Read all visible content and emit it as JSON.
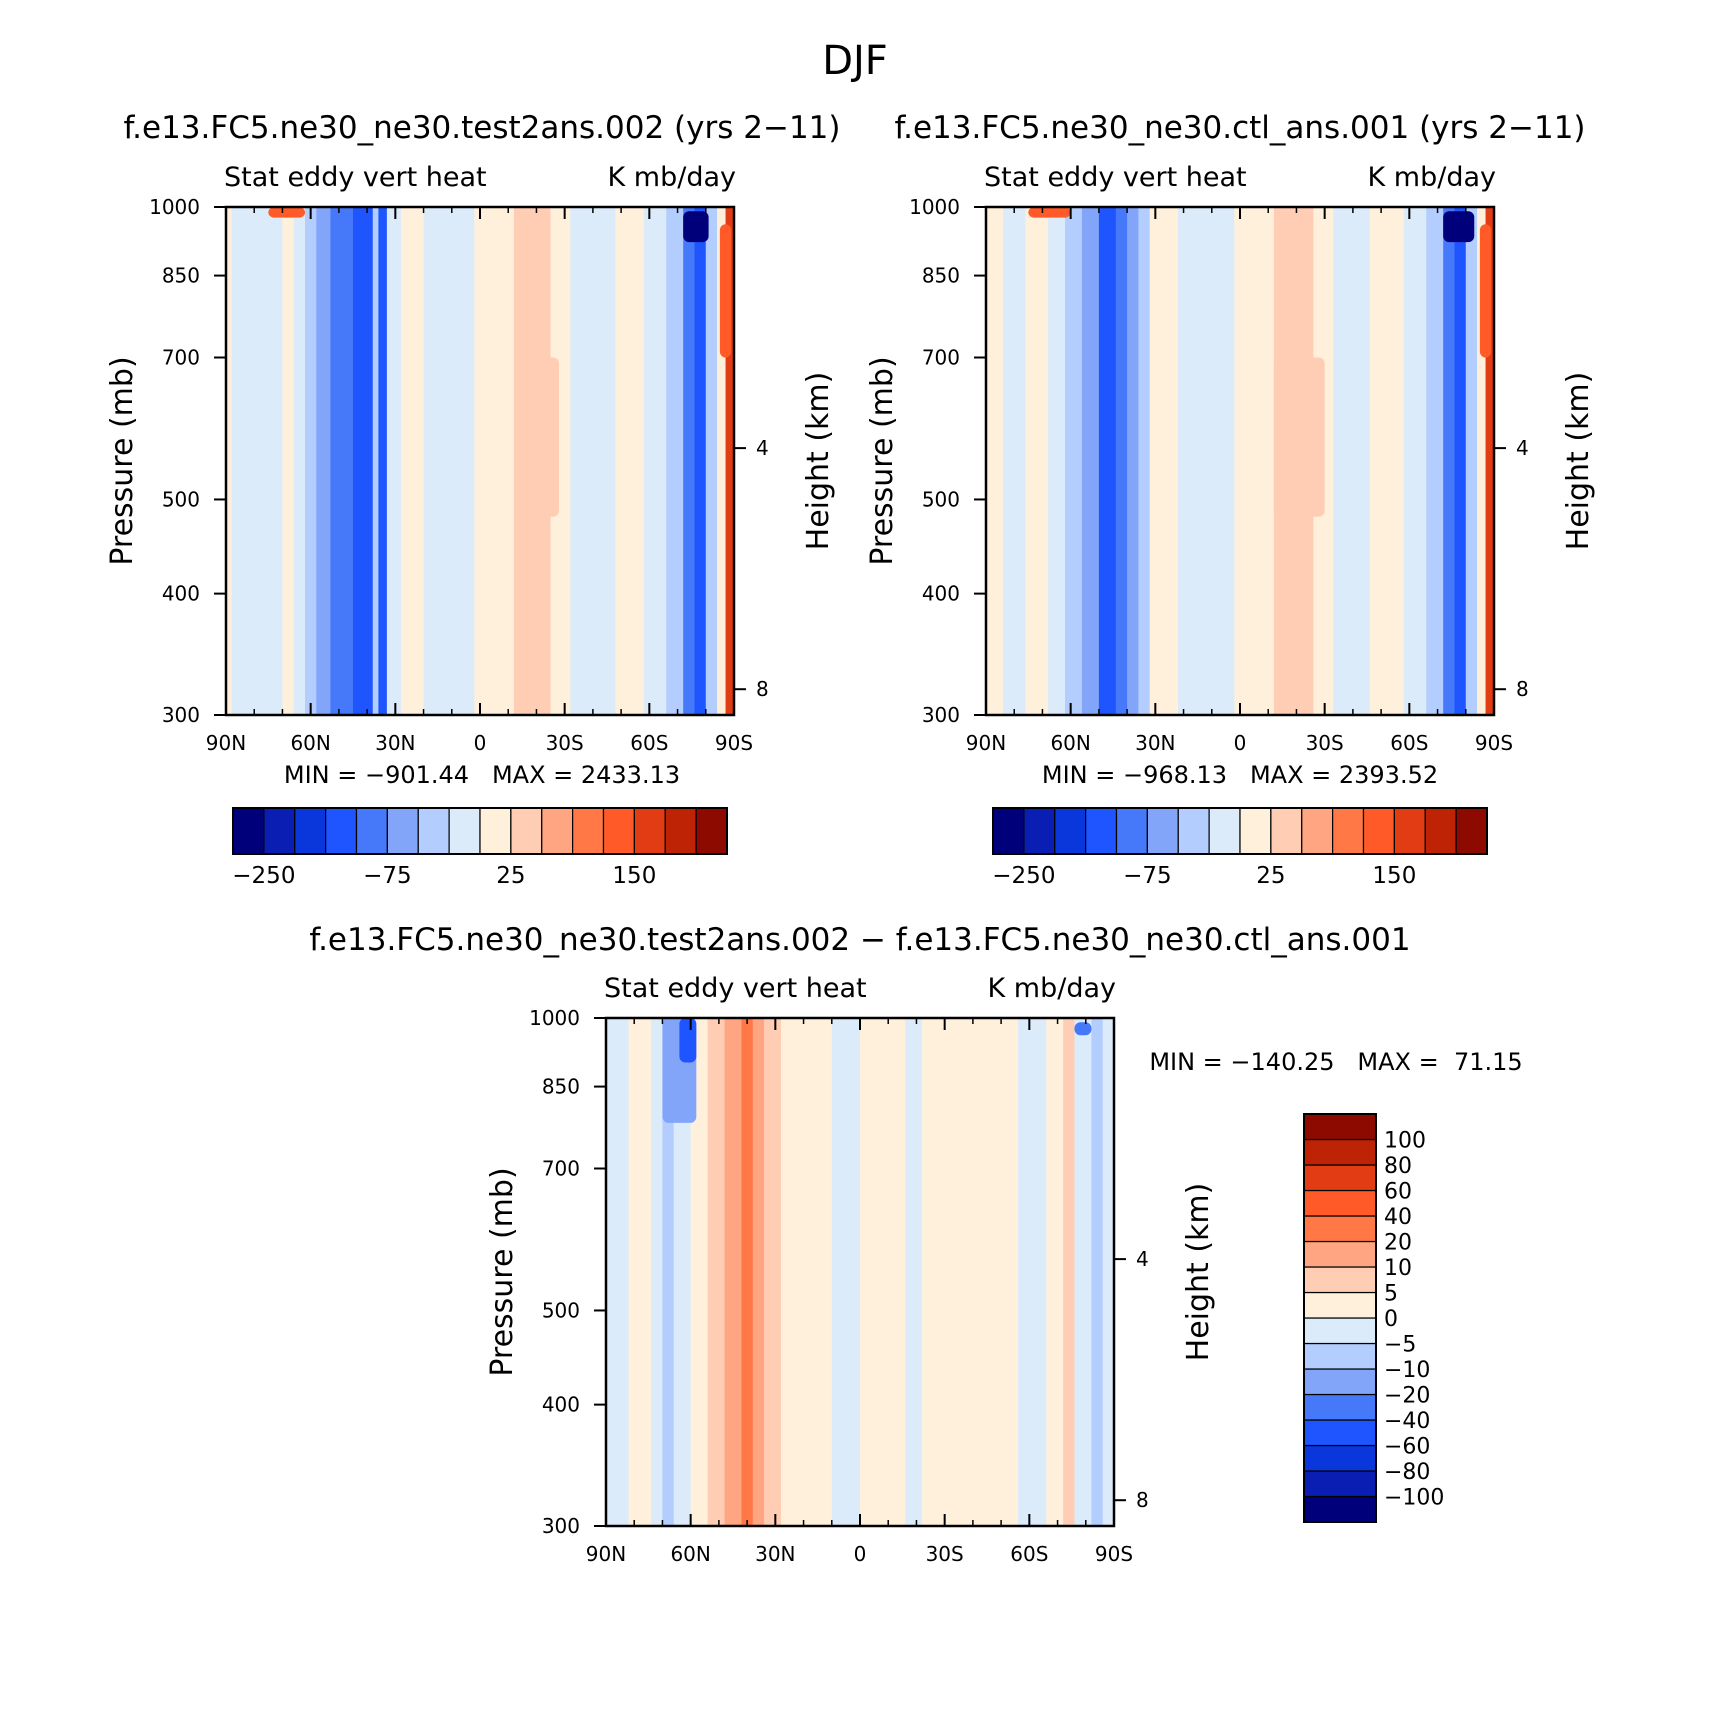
{
  "figure": {
    "title": "DJF",
    "palette": [
      "#00007a",
      "#0a1eb4",
      "#0a37dc",
      "#1e55ff",
      "#4678fa",
      "#82a5fa",
      "#b4cdff",
      "#dcebfa",
      "#fff0dc",
      "#ffcdb4",
      "#ffa582",
      "#ff7846",
      "#ff5a28",
      "#e13c14",
      "#be2305",
      "#8c0a00"
    ]
  },
  "chart_data": [
    {
      "type": "heatmap",
      "panel_title": "f.e13.FC5.ne30_ne30.test2ans.002 (yrs 2−11)",
      "variable": "Stat eddy vert heat",
      "units": "K mb/day",
      "ylabel": "Pressure (mb)",
      "y2label": "Height (km)",
      "x_ticks": [
        "90N",
        "60N",
        "30N",
        "0",
        "30S",
        "60S",
        "90S"
      ],
      "y_ticks": [
        300,
        400,
        500,
        700,
        850,
        1000
      ],
      "y2_ticks": [
        8,
        4
      ],
      "min_max": "MIN = −901.44   MAX = 2433.13",
      "colorbar_labels": [
        "−250",
        "−75",
        "25",
        "150"
      ],
      "ylim": [
        1000,
        300
      ],
      "xlim": [
        90,
        -90
      ],
      "bands": [
        {
          "lat": [
            90,
            88
          ],
          "level": 8
        },
        {
          "lat": [
            88,
            80
          ],
          "level": 7
        },
        {
          "lat": [
            80,
            70
          ],
          "level": 7
        },
        {
          "lat": [
            70,
            66
          ],
          "level": 8
        },
        {
          "lat": [
            66,
            62
          ],
          "level": 7
        },
        {
          "lat": [
            62,
            58
          ],
          "level": 6
        },
        {
          "lat": [
            58,
            53
          ],
          "level": 5
        },
        {
          "lat": [
            53,
            45
          ],
          "level": 4
        },
        {
          "lat": [
            45,
            38
          ],
          "level": 3
        },
        {
          "lat": [
            38,
            36
          ],
          "level": 6
        },
        {
          "lat": [
            36,
            33
          ],
          "level": 3
        },
        {
          "lat": [
            33,
            28
          ],
          "level": 7
        },
        {
          "lat": [
            28,
            20
          ],
          "level": 8
        },
        {
          "lat": [
            20,
            10
          ],
          "level": 7
        },
        {
          "lat": [
            10,
            2
          ],
          "level": 7
        },
        {
          "lat": [
            2,
            -12
          ],
          "level": 8
        },
        {
          "lat": [
            -12,
            -25
          ],
          "level": 9
        },
        {
          "lat": [
            -25,
            -32
          ],
          "level": 8
        },
        {
          "lat": [
            -32,
            -48
          ],
          "level": 7
        },
        {
          "lat": [
            -48,
            -58
          ],
          "level": 8
        },
        {
          "lat": [
            -58,
            -66
          ],
          "level": 7
        },
        {
          "lat": [
            -66,
            -72
          ],
          "level": 6
        },
        {
          "lat": [
            -72,
            -76
          ],
          "level": 4
        },
        {
          "lat": [
            -76,
            -80
          ],
          "level": 3
        },
        {
          "lat": [
            -80,
            -84
          ],
          "level": 6
        },
        {
          "lat": [
            -84,
            -87
          ],
          "level": 8
        },
        {
          "lat": [
            -87,
            -90
          ],
          "level": 13
        }
      ],
      "blobs": [
        {
          "lat": [
            -72,
            -81
          ],
          "p": [
            920,
            990
          ],
          "level": 0
        },
        {
          "lat": [
            62,
            75
          ],
          "p": [
            975,
            1000
          ],
          "level": 12
        },
        {
          "lat": [
            -15,
            -28
          ],
          "p": [
            480,
            700
          ],
          "level": 9
        },
        {
          "lat": [
            -85,
            -89
          ],
          "p": [
            700,
            960
          ],
          "level": 12
        }
      ]
    },
    {
      "type": "heatmap",
      "panel_title": "f.e13.FC5.ne30_ne30.ctl_ans.001 (yrs 2−11)",
      "variable": "Stat eddy vert heat",
      "units": "K mb/day",
      "ylabel": "Pressure (mb)",
      "y2label": "Height (km)",
      "x_ticks": [
        "90N",
        "60N",
        "30N",
        "0",
        "30S",
        "60S",
        "90S"
      ],
      "y_ticks": [
        300,
        400,
        500,
        700,
        850,
        1000
      ],
      "y2_ticks": [
        8,
        4
      ],
      "min_max": "MIN = −968.13   MAX = 2393.52",
      "colorbar_labels": [
        "−250",
        "−75",
        "25",
        "150"
      ],
      "ylim": [
        1000,
        300
      ],
      "xlim": [
        90,
        -90
      ],
      "bands": [
        {
          "lat": [
            90,
            84
          ],
          "level": 8
        },
        {
          "lat": [
            84,
            76
          ],
          "level": 7
        },
        {
          "lat": [
            76,
            68
          ],
          "level": 8
        },
        {
          "lat": [
            68,
            62
          ],
          "level": 7
        },
        {
          "lat": [
            62,
            56
          ],
          "level": 6
        },
        {
          "lat": [
            56,
            50
          ],
          "level": 5
        },
        {
          "lat": [
            50,
            44
          ],
          "level": 3
        },
        {
          "lat": [
            44,
            40
          ],
          "level": 4
        },
        {
          "lat": [
            40,
            36
          ],
          "level": 5
        },
        {
          "lat": [
            36,
            32
          ],
          "level": 6
        },
        {
          "lat": [
            32,
            22
          ],
          "level": 8
        },
        {
          "lat": [
            22,
            12
          ],
          "level": 7
        },
        {
          "lat": [
            12,
            2
          ],
          "level": 7
        },
        {
          "lat": [
            2,
            -12
          ],
          "level": 8
        },
        {
          "lat": [
            -12,
            -26
          ],
          "level": 9
        },
        {
          "lat": [
            -26,
            -33
          ],
          "level": 8
        },
        {
          "lat": [
            -33,
            -46
          ],
          "level": 7
        },
        {
          "lat": [
            -46,
            -58
          ],
          "level": 8
        },
        {
          "lat": [
            -58,
            -66
          ],
          "level": 7
        },
        {
          "lat": [
            -66,
            -72
          ],
          "level": 6
        },
        {
          "lat": [
            -72,
            -76
          ],
          "level": 4
        },
        {
          "lat": [
            -76,
            -80
          ],
          "level": 3
        },
        {
          "lat": [
            -80,
            -84
          ],
          "level": 6
        },
        {
          "lat": [
            -84,
            -87
          ],
          "level": 8
        },
        {
          "lat": [
            -87,
            -90
          ],
          "level": 13
        }
      ],
      "blobs": [
        {
          "lat": [
            -72,
            -83
          ],
          "p": [
            920,
            990
          ],
          "level": 0
        },
        {
          "lat": [
            60,
            75
          ],
          "p": [
            975,
            1000
          ],
          "level": 12
        },
        {
          "lat": [
            -12,
            -30
          ],
          "p": [
            480,
            700
          ],
          "level": 9
        },
        {
          "lat": [
            -85,
            -89
          ],
          "p": [
            700,
            960
          ],
          "level": 12
        }
      ]
    },
    {
      "type": "heatmap",
      "panel_title": "f.e13.FC5.ne30_ne30.test2ans.002 − f.e13.FC5.ne30_ne30.ctl_ans.001",
      "variable": "Stat eddy vert heat",
      "units": "K mb/day",
      "ylabel": "Pressure (mb)",
      "y2label": "Height (km)",
      "x_ticks": [
        "90N",
        "60N",
        "30N",
        "0",
        "30S",
        "60S",
        "90S"
      ],
      "y_ticks": [
        300,
        400,
        500,
        700,
        850,
        1000
      ],
      "y2_ticks": [
        8,
        4
      ],
      "min_max": "MIN = −140.25   MAX =  71.15",
      "colorbar_labels": [
        "100",
        "80",
        "60",
        "40",
        "20",
        "10",
        "5",
        "0",
        "−5",
        "−10",
        "−20",
        "−40",
        "−60",
        "−80",
        "−100"
      ],
      "ylim": [
        1000,
        300
      ],
      "xlim": [
        90,
        -90
      ],
      "bands": [
        {
          "lat": [
            90,
            82
          ],
          "level": 7
        },
        {
          "lat": [
            82,
            74
          ],
          "level": 8
        },
        {
          "lat": [
            74,
            70
          ],
          "level": 7
        },
        {
          "lat": [
            70,
            66
          ],
          "level": 6
        },
        {
          "lat": [
            66,
            60
          ],
          "level": 7
        },
        {
          "lat": [
            60,
            54
          ],
          "level": 8
        },
        {
          "lat": [
            54,
            48
          ],
          "level": 9
        },
        {
          "lat": [
            48,
            42
          ],
          "level": 10
        },
        {
          "lat": [
            42,
            38
          ],
          "level": 11
        },
        {
          "lat": [
            38,
            34
          ],
          "level": 10
        },
        {
          "lat": [
            34,
            28
          ],
          "level": 9
        },
        {
          "lat": [
            28,
            10
          ],
          "level": 8
        },
        {
          "lat": [
            10,
            0
          ],
          "level": 7
        },
        {
          "lat": [
            0,
            -16
          ],
          "level": 8
        },
        {
          "lat": [
            -16,
            -22
          ],
          "level": 7
        },
        {
          "lat": [
            -22,
            -56
          ],
          "level": 8
        },
        {
          "lat": [
            -56,
            -66
          ],
          "level": 7
        },
        {
          "lat": [
            -66,
            -72
          ],
          "level": 8
        },
        {
          "lat": [
            -72,
            -76
          ],
          "level": 9
        },
        {
          "lat": [
            -76,
            -82
          ],
          "level": 7
        },
        {
          "lat": [
            -82,
            -86
          ],
          "level": 6
        },
        {
          "lat": [
            -86,
            -90
          ],
          "level": 7
        }
      ],
      "blobs": [
        {
          "lat": [
            70,
            58
          ],
          "p": [
            780,
            1000
          ],
          "level": 5
        },
        {
          "lat": [
            64,
            58
          ],
          "p": [
            900,
            1000
          ],
          "level": 3
        },
        {
          "lat": [
            -76,
            -82
          ],
          "p": [
            960,
            990
          ],
          "level": 4
        }
      ],
      "colorbar_orientation": "vertical"
    }
  ]
}
